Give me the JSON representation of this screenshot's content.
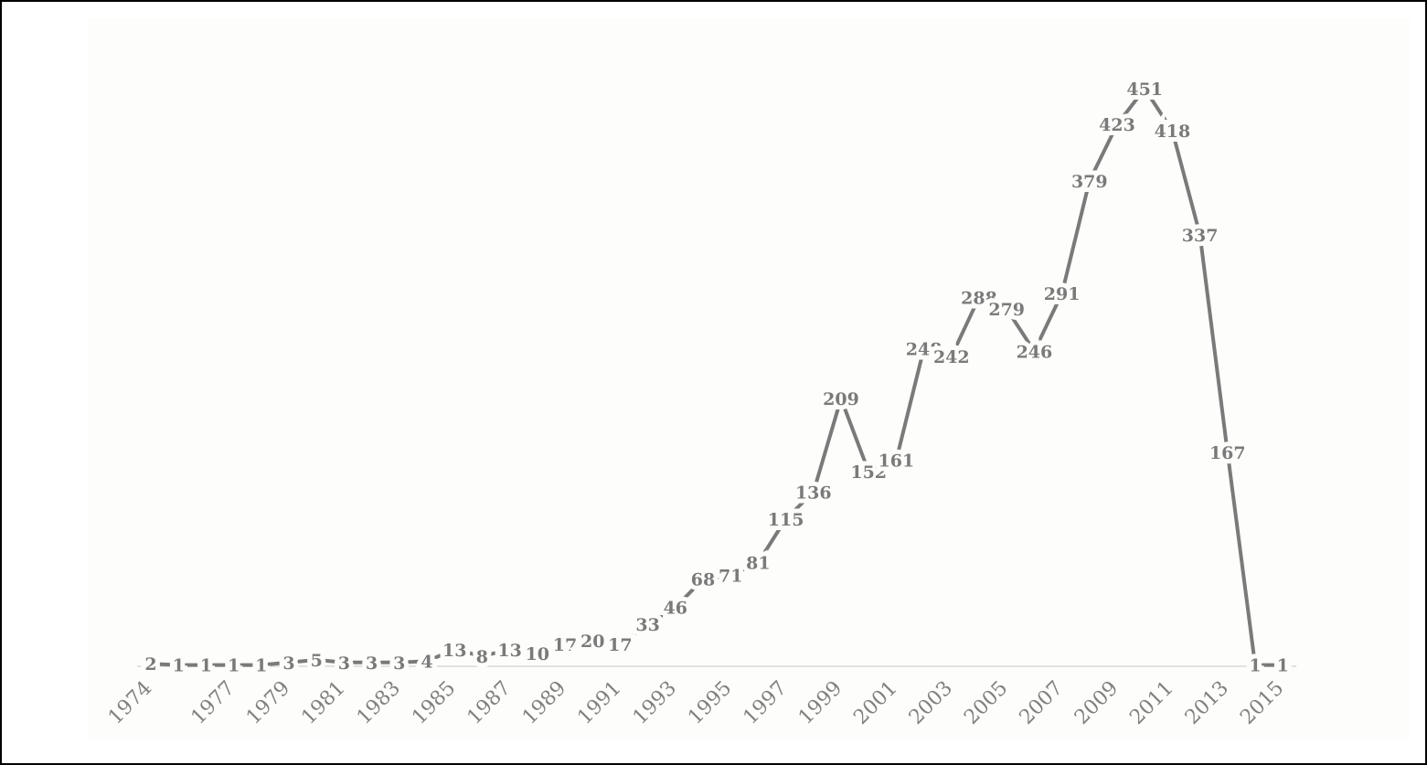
{
  "colors": {
    "line": "#7a7a7a",
    "axis": "#d9d9d9",
    "label": "#7a7a7a",
    "background": "#fdfdfb"
  },
  "chart_data": {
    "type": "line",
    "title": "",
    "xlabel": "",
    "ylabel": "",
    "grid": false,
    "legend": "none",
    "data_labels": true,
    "x": [
      1974,
      1975,
      1976,
      1977,
      1978,
      1979,
      1980,
      1981,
      1982,
      1983,
      1984,
      1985,
      1986,
      1987,
      1988,
      1989,
      1990,
      1991,
      1992,
      1993,
      1994,
      1995,
      1996,
      1997,
      1998,
      1999,
      2000,
      2001,
      2002,
      2003,
      2004,
      2005,
      2006,
      2007,
      2008,
      2009,
      2010,
      2011,
      2012,
      2013,
      2014,
      2015
    ],
    "series": [
      {
        "values": [
          2,
          1,
          1,
          1,
          1,
          3,
          5,
          3,
          3,
          3,
          4,
          13,
          8,
          13,
          10,
          17,
          20,
          17,
          33,
          46,
          68,
          71,
          81,
          115,
          136,
          209,
          152,
          161,
          248,
          242,
          288,
          279,
          246,
          291,
          379,
          423,
          451,
          418,
          337,
          167,
          1,
          1
        ]
      }
    ],
    "x_tick_labels": [
      "1974",
      "1977",
      "1979",
      "1981",
      "1983",
      "1985",
      "1987",
      "1989",
      "1991",
      "1993",
      "1995",
      "1997",
      "1999",
      "2001",
      "2003",
      "2005",
      "2007",
      "2009",
      "2011",
      "2013",
      "2015"
    ],
    "ylim": [
      0,
      451
    ]
  }
}
